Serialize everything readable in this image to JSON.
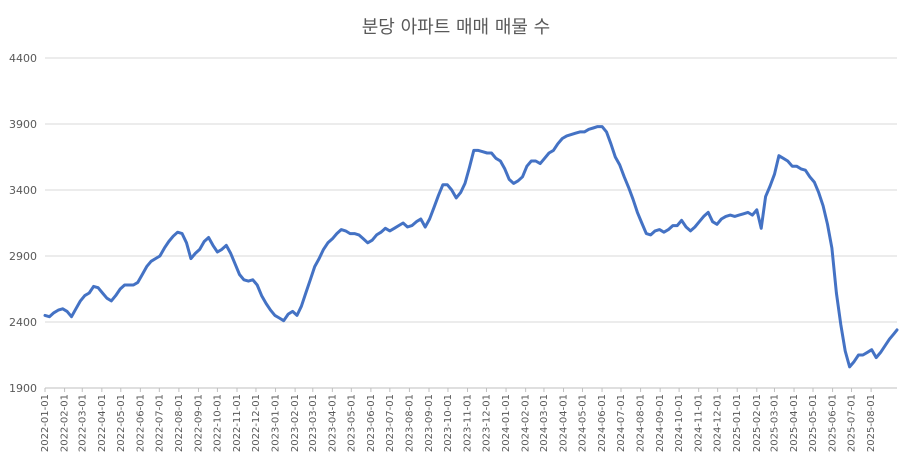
{
  "chart_data": {
    "type": "line",
    "title": "분당 아파트 매매 매물 수",
    "xlabel": "",
    "ylabel": "",
    "ylim": [
      1900,
      4400
    ],
    "yticks": [
      1900,
      2400,
      2900,
      3400,
      3900,
      4400
    ],
    "grid": true,
    "legend": "none",
    "series_color": "#4472c4",
    "x_ticks": [
      "2022-01-01",
      "2022-02-01",
      "2022-03-01",
      "2022-04-01",
      "2022-05-01",
      "2022-06-01",
      "2022-07-01",
      "2022-08-01",
      "2022-09-01",
      "2022-10-01",
      "2022-11-01",
      "2022-12-01",
      "2023-01-01",
      "2023-02-01",
      "2023-03-01",
      "2023-04-01",
      "2023-05-01",
      "2023-06-01",
      "2023-07-01",
      "2023-08-01",
      "2023-09-01",
      "2023-10-01",
      "2023-11-01",
      "2023-12-01",
      "2024-01-01",
      "2024-02-01",
      "2024-03-01",
      "2024-04-01",
      "2024-05-01",
      "2024-06-01",
      "2024-07-01",
      "2024-08-01",
      "2024-09-01",
      "2024-10-01",
      "2024-11-01",
      "2024-12-01",
      "2025-01-01",
      "2025-02-01",
      "2025-03-01",
      "2025-04-01",
      "2025-05-01",
      "2025-06-01",
      "2025-07-01",
      "2025-08-01"
    ],
    "x_end": "2025-09-11",
    "series": [
      {
        "points": [
          [
            "2022-01-01",
            2450
          ],
          [
            "2022-01-08",
            2440
          ],
          [
            "2022-01-15",
            2470
          ],
          [
            "2022-01-22",
            2490
          ],
          [
            "2022-01-29",
            2500
          ],
          [
            "2022-02-05",
            2480
          ],
          [
            "2022-02-12",
            2440
          ],
          [
            "2022-02-19",
            2500
          ],
          [
            "2022-02-26",
            2560
          ],
          [
            "2022-03-05",
            2600
          ],
          [
            "2022-03-12",
            2620
          ],
          [
            "2022-03-19",
            2670
          ],
          [
            "2022-03-26",
            2660
          ],
          [
            "2022-04-02",
            2620
          ],
          [
            "2022-04-09",
            2580
          ],
          [
            "2022-04-16",
            2560
          ],
          [
            "2022-04-23",
            2600
          ],
          [
            "2022-04-30",
            2650
          ],
          [
            "2022-05-07",
            2680
          ],
          [
            "2022-05-14",
            2680
          ],
          [
            "2022-05-21",
            2680
          ],
          [
            "2022-05-28",
            2700
          ],
          [
            "2022-06-04",
            2760
          ],
          [
            "2022-06-11",
            2820
          ],
          [
            "2022-06-18",
            2860
          ],
          [
            "2022-06-25",
            2880
          ],
          [
            "2022-07-02",
            2900
          ],
          [
            "2022-07-09",
            2960
          ],
          [
            "2022-07-16",
            3010
          ],
          [
            "2022-07-23",
            3050
          ],
          [
            "2022-07-30",
            3080
          ],
          [
            "2022-08-06",
            3070
          ],
          [
            "2022-08-13",
            3000
          ],
          [
            "2022-08-20",
            2880
          ],
          [
            "2022-08-27",
            2920
          ],
          [
            "2022-09-03",
            2950
          ],
          [
            "2022-09-10",
            3010
          ],
          [
            "2022-09-17",
            3040
          ],
          [
            "2022-09-24",
            2980
          ],
          [
            "2022-10-01",
            2930
          ],
          [
            "2022-10-08",
            2950
          ],
          [
            "2022-10-15",
            2980
          ],
          [
            "2022-10-22",
            2920
          ],
          [
            "2022-10-29",
            2840
          ],
          [
            "2022-11-05",
            2760
          ],
          [
            "2022-11-12",
            2720
          ],
          [
            "2022-11-19",
            2710
          ],
          [
            "2022-11-26",
            2720
          ],
          [
            "2022-12-03",
            2680
          ],
          [
            "2022-12-10",
            2600
          ],
          [
            "2022-12-17",
            2540
          ],
          [
            "2022-12-24",
            2490
          ],
          [
            "2022-12-31",
            2450
          ],
          [
            "2023-01-07",
            2430
          ],
          [
            "2023-01-14",
            2410
          ],
          [
            "2023-01-21",
            2460
          ],
          [
            "2023-01-28",
            2480
          ],
          [
            "2023-02-04",
            2450
          ],
          [
            "2023-02-11",
            2520
          ],
          [
            "2023-02-18",
            2620
          ],
          [
            "2023-02-25",
            2720
          ],
          [
            "2023-03-04",
            2820
          ],
          [
            "2023-03-11",
            2880
          ],
          [
            "2023-03-18",
            2950
          ],
          [
            "2023-03-25",
            3000
          ],
          [
            "2023-04-01",
            3030
          ],
          [
            "2023-04-08",
            3070
          ],
          [
            "2023-04-15",
            3100
          ],
          [
            "2023-04-22",
            3090
          ],
          [
            "2023-04-29",
            3070
          ],
          [
            "2023-05-06",
            3070
          ],
          [
            "2023-05-13",
            3060
          ],
          [
            "2023-05-20",
            3030
          ],
          [
            "2023-05-27",
            3000
          ],
          [
            "2023-06-03",
            3020
          ],
          [
            "2023-06-10",
            3060
          ],
          [
            "2023-06-17",
            3080
          ],
          [
            "2023-06-24",
            3110
          ],
          [
            "2023-07-01",
            3090
          ],
          [
            "2023-07-08",
            3110
          ],
          [
            "2023-07-15",
            3130
          ],
          [
            "2023-07-22",
            3150
          ],
          [
            "2023-07-29",
            3120
          ],
          [
            "2023-08-05",
            3130
          ],
          [
            "2023-08-12",
            3160
          ],
          [
            "2023-08-19",
            3180
          ],
          [
            "2023-08-26",
            3120
          ],
          [
            "2023-09-02",
            3180
          ],
          [
            "2023-09-09",
            3270
          ],
          [
            "2023-09-16",
            3360
          ],
          [
            "2023-09-23",
            3440
          ],
          [
            "2023-09-30",
            3440
          ],
          [
            "2023-10-07",
            3400
          ],
          [
            "2023-10-14",
            3340
          ],
          [
            "2023-10-21",
            3380
          ],
          [
            "2023-10-28",
            3450
          ],
          [
            "2023-11-04",
            3570
          ],
          [
            "2023-11-11",
            3700
          ],
          [
            "2023-11-18",
            3700
          ],
          [
            "2023-11-25",
            3690
          ],
          [
            "2023-12-02",
            3680
          ],
          [
            "2023-12-09",
            3680
          ],
          [
            "2023-12-16",
            3640
          ],
          [
            "2023-12-23",
            3620
          ],
          [
            "2023-12-30",
            3560
          ],
          [
            "2024-01-06",
            3480
          ],
          [
            "2024-01-13",
            3450
          ],
          [
            "2024-01-20",
            3470
          ],
          [
            "2024-01-27",
            3500
          ],
          [
            "2024-02-03",
            3580
          ],
          [
            "2024-02-10",
            3620
          ],
          [
            "2024-02-17",
            3620
          ],
          [
            "2024-02-24",
            3600
          ],
          [
            "2024-03-02",
            3640
          ],
          [
            "2024-03-09",
            3680
          ],
          [
            "2024-03-16",
            3700
          ],
          [
            "2024-03-23",
            3750
          ],
          [
            "2024-03-30",
            3790
          ],
          [
            "2024-04-06",
            3810
          ],
          [
            "2024-04-13",
            3820
          ],
          [
            "2024-04-20",
            3830
          ],
          [
            "2024-04-27",
            3840
          ],
          [
            "2024-05-04",
            3840
          ],
          [
            "2024-05-11",
            3860
          ],
          [
            "2024-05-18",
            3870
          ],
          [
            "2024-05-25",
            3880
          ],
          [
            "2024-06-01",
            3880
          ],
          [
            "2024-06-08",
            3840
          ],
          [
            "2024-06-15",
            3750
          ],
          [
            "2024-06-22",
            3650
          ],
          [
            "2024-06-29",
            3590
          ],
          [
            "2024-07-06",
            3500
          ],
          [
            "2024-07-13",
            3420
          ],
          [
            "2024-07-20",
            3330
          ],
          [
            "2024-07-27",
            3230
          ],
          [
            "2024-08-03",
            3150
          ],
          [
            "2024-08-10",
            3070
          ],
          [
            "2024-08-17",
            3060
          ],
          [
            "2024-08-24",
            3090
          ],
          [
            "2024-08-31",
            3100
          ],
          [
            "2024-09-07",
            3080
          ],
          [
            "2024-09-14",
            3100
          ],
          [
            "2024-09-21",
            3130
          ],
          [
            "2024-09-28",
            3130
          ],
          [
            "2024-10-05",
            3170
          ],
          [
            "2024-10-12",
            3120
          ],
          [
            "2024-10-19",
            3090
          ],
          [
            "2024-10-26",
            3120
          ],
          [
            "2024-11-02",
            3160
          ],
          [
            "2024-11-09",
            3200
          ],
          [
            "2024-11-16",
            3230
          ],
          [
            "2024-11-23",
            3160
          ],
          [
            "2024-11-30",
            3140
          ],
          [
            "2024-12-07",
            3180
          ],
          [
            "2024-12-14",
            3200
          ],
          [
            "2024-12-21",
            3210
          ],
          [
            "2024-12-28",
            3200
          ],
          [
            "2025-01-04",
            3210
          ],
          [
            "2025-01-11",
            3220
          ],
          [
            "2025-01-18",
            3230
          ],
          [
            "2025-01-25",
            3210
          ],
          [
            "2025-02-01",
            3250
          ],
          [
            "2025-02-08",
            3110
          ],
          [
            "2025-02-15",
            3350
          ],
          [
            "2025-02-22",
            3430
          ],
          [
            "2025-03-01",
            3520
          ],
          [
            "2025-03-08",
            3660
          ],
          [
            "2025-03-15",
            3640
          ],
          [
            "2025-03-22",
            3620
          ],
          [
            "2025-03-29",
            3580
          ],
          [
            "2025-04-05",
            3580
          ],
          [
            "2025-04-12",
            3560
          ],
          [
            "2025-04-19",
            3550
          ],
          [
            "2025-04-26",
            3500
          ],
          [
            "2025-05-03",
            3460
          ],
          [
            "2025-05-10",
            3380
          ],
          [
            "2025-05-17",
            3280
          ],
          [
            "2025-05-24",
            3140
          ],
          [
            "2025-05-31",
            2960
          ],
          [
            "2025-06-07",
            2620
          ],
          [
            "2025-06-14",
            2380
          ],
          [
            "2025-06-21",
            2180
          ],
          [
            "2025-06-28",
            2060
          ],
          [
            "2025-07-05",
            2100
          ],
          [
            "2025-07-12",
            2150
          ],
          [
            "2025-07-19",
            2150
          ],
          [
            "2025-07-26",
            2170
          ],
          [
            "2025-08-02",
            2190
          ],
          [
            "2025-08-09",
            2130
          ],
          [
            "2025-08-16",
            2170
          ],
          [
            "2025-08-23",
            2220
          ],
          [
            "2025-08-30",
            2270
          ],
          [
            "2025-09-06",
            2310
          ],
          [
            "2025-09-11",
            2340
          ]
        ]
      }
    ]
  }
}
